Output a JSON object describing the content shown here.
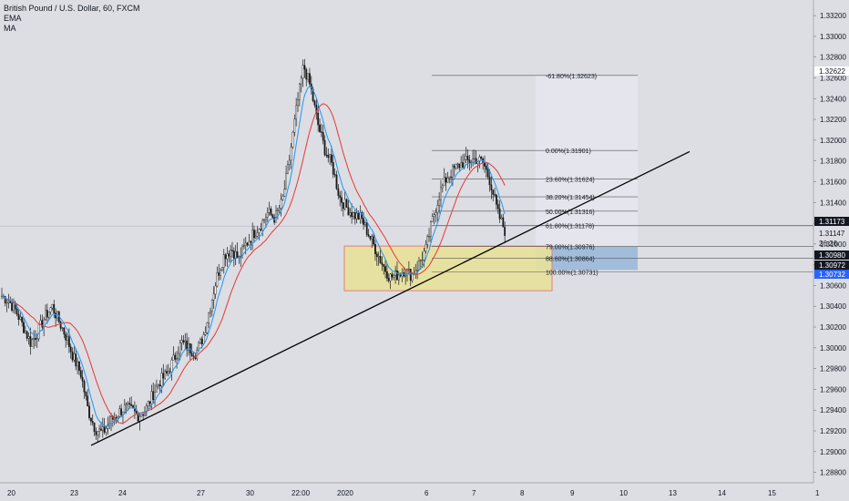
{
  "header": {
    "symbol_title": "British Pound / U.S. Dollar, 60, FXCM",
    "indicator_1": "EMA",
    "indicator_2": "MA"
  },
  "colors": {
    "background": "#dcdee3",
    "candle": "#1a1a1a",
    "ema": "#2196f3",
    "ma": "#e53935",
    "trendline": "#000000",
    "zone_fill": "#e8e29a",
    "zone_border": "#e57373",
    "projection_fill": "#e6e8ee",
    "axis_badge": "#131722",
    "price_badge_blue": "#6fa0cc",
    "price_badge_darkblue": "#2962ff"
  },
  "chart_data": {
    "type": "candlestick",
    "symbol": "British Pound / U.S. Dollar",
    "timeframe": "60",
    "source": "FXCM",
    "ylim": [
      1.287,
      1.3335
    ],
    "y_ticks": [
      "1.33200",
      "1.33000",
      "1.32800",
      "1.32600",
      "1.32400",
      "1.32200",
      "1.32000",
      "1.31800",
      "1.31600",
      "1.31400",
      "1.31200",
      "1.31000",
      "1.30800",
      "1.30600",
      "1.30400",
      "1.30200",
      "1.30000",
      "1.29800",
      "1.29600",
      "1.29400",
      "1.29200",
      "1.29000",
      "1.28800"
    ],
    "x_ticks": [
      "20",
      "23",
      "24",
      "27",
      "30",
      "22:00",
      "2020",
      "6",
      "7",
      "8",
      "9",
      "10",
      "13",
      "14",
      "15",
      "1"
    ],
    "price_badges": [
      {
        "label": "1.32622",
        "style": "light"
      },
      {
        "label": "1.31173",
        "style": "dark"
      },
      {
        "label": "1.31147",
        "style": "plain"
      },
      {
        "label": "26:26",
        "style": "plain"
      },
      {
        "label": "1.30980",
        "style": "dark"
      },
      {
        "label": "1.30972",
        "style": "dark"
      },
      {
        "label": "1.30732",
        "style": "blue"
      }
    ],
    "fib_levels": [
      {
        "label": "-61.80%(1.32623)",
        "value": 1.32623
      },
      {
        "label": "0.00%(1.31901)",
        "value": 1.31901
      },
      {
        "label": "23.60%(1.31624)",
        "value": 1.31624
      },
      {
        "label": "38.20%(1.31454)",
        "value": 1.31454
      },
      {
        "label": "50.00%(1.31316)",
        "value": 1.31316
      },
      {
        "label": "61.80%(1.31178)",
        "value": 1.31178
      },
      {
        "label": "79.00%(1.30976)",
        "value": 1.30976
      },
      {
        "label": "88.60%(1.30864)",
        "value": 1.30864
      },
      {
        "label": "100.00%(1.30731)",
        "value": 1.30731
      }
    ],
    "demand_zone": {
      "top": 1.3098,
      "bottom": 1.3055
    },
    "trendline": {
      "from_price": 1.2906,
      "to_price": 1.3189
    },
    "price_path": [
      1.305,
      1.3045,
      1.3035,
      1.302,
      1.3005,
      1.3015,
      1.303,
      1.304,
      1.3025,
      1.301,
      1.299,
      1.2975,
      1.294,
      1.2922,
      1.2918,
      1.2928,
      1.2936,
      1.2942,
      1.294,
      1.2935,
      1.294,
      1.2955,
      1.2968,
      1.2975,
      1.299,
      1.3005,
      1.3,
      1.2995,
      1.301,
      1.304,
      1.307,
      1.309,
      1.3095,
      1.3085,
      1.31,
      1.311,
      1.3118,
      1.313,
      1.3125,
      1.314,
      1.318,
      1.323,
      1.3272,
      1.325,
      1.3215,
      1.319,
      1.3175,
      1.3145,
      1.3135,
      1.3128,
      1.3125,
      1.311,
      1.3095,
      1.308,
      1.3068,
      1.307,
      1.3075,
      1.307,
      1.308,
      1.3095,
      1.3125,
      1.315,
      1.3165,
      1.3172,
      1.3178,
      1.318,
      1.3182,
      1.3178,
      1.316,
      1.313,
      1.3113
    ]
  }
}
